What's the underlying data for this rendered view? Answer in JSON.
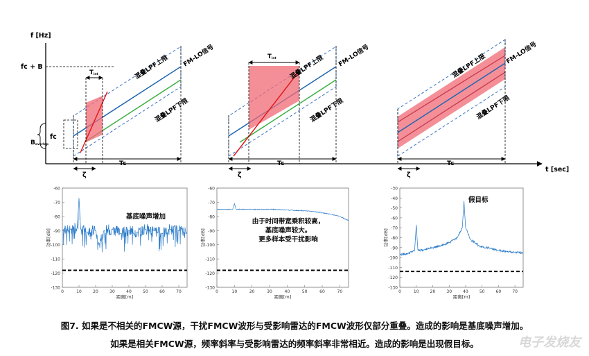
{
  "top_diagram": {
    "y_axis_label": "f [Hz]",
    "x_axis_label": "t [sec]",
    "label_fc_plus_b": "fc + B",
    "label_fc": "fc",
    "label_b_overlap": "B",
    "label_b_overlap_sub": "overlap",
    "label_tint": "T",
    "label_tint_sub": "int",
    "label_tc": "Tc",
    "label_zeta": "ζ",
    "label_upper_limit": "混叠LPF上限",
    "label_lower_limit": "混叠LPF下限",
    "label_fm_lo": "FM-LO信号",
    "colors": {
      "lo": "#2166b0",
      "green": "#3cb043",
      "dashed": "#3a72c4",
      "interferer": "#e01b1b",
      "band": "#f06a75"
    }
  },
  "bottom_plots": {
    "y_axis_title": "功率[dB]",
    "x_axis_title": "距离[m]",
    "x_ticks": [
      "0",
      "10",
      "20",
      "30",
      "40",
      "50",
      "60",
      "70"
    ],
    "plots": [
      {
        "annotation": [
          "基底噪声增加"
        ],
        "y_ticks": [
          "-60",
          "-70",
          "-80",
          "-90",
          "-100",
          "-110",
          "-120",
          "-130"
        ],
        "chart_data": {
          "type": "line",
          "xlabel": "距离[m]",
          "ylabel": "功率[dB]",
          "xlim": [
            0,
            75
          ],
          "ylim": [
            -130,
            -60
          ],
          "series": [
            {
              "name": "spectrum",
              "x": [
                0,
                5,
                9,
                10,
                11,
                15,
                20,
                22,
                25,
                30,
                35,
                40,
                45,
                50,
                55,
                60,
                65,
                70,
                75
              ],
              "y": [
                -90,
                -89,
                -88,
                -67,
                -89,
                -91,
                -90,
                -100,
                -90,
                -89,
                -92,
                -90,
                -91,
                -89,
                -90,
                -92,
                -89,
                -90,
                -92
              ]
            },
            {
              "name": "threshold",
              "x": [
                0,
                75
              ],
              "y": [
                -118,
                -118
              ]
            }
          ]
        }
      },
      {
        "annotation": [
          "由于时间带宽乘积较高，",
          "基底噪声较大。",
          "更多样本受干扰影响"
        ],
        "y_ticks": [
          "-60",
          "-70",
          "-80",
          "-90",
          "-100",
          "-110",
          "-120",
          "-130"
        ],
        "chart_data": {
          "type": "line",
          "xlabel": "距离[m]",
          "ylabel": "功率[dB]",
          "xlim": [
            0,
            75
          ],
          "ylim": [
            -130,
            -60
          ],
          "series": [
            {
              "name": "spectrum",
              "x": [
                0,
                5,
                9,
                10,
                11,
                20,
                30,
                40,
                50,
                55,
                60,
                65,
                70,
                75
              ],
              "y": [
                -75,
                -75,
                -75,
                -71,
                -75,
                -75,
                -75,
                -75.5,
                -76,
                -76.5,
                -77.5,
                -78.5,
                -80,
                -83
              ]
            },
            {
              "name": "threshold",
              "x": [
                0,
                75
              ],
              "y": [
                -118,
                -118
              ]
            }
          ]
        }
      },
      {
        "annotation": [
          "假目标"
        ],
        "y_ticks": [
          "-30",
          "-40",
          "-50",
          "-60",
          "-70",
          "-80",
          "-90",
          "-100",
          "-110",
          "-120",
          "-130"
        ],
        "chart_data": {
          "type": "line",
          "xlabel": "距离[m]",
          "ylabel": "功率[dB]",
          "xlim": [
            0,
            75
          ],
          "ylim": [
            -130,
            -30
          ],
          "series": [
            {
              "name": "spectrum",
              "x": [
                0,
                5,
                9,
                10,
                11,
                15,
                20,
                25,
                30,
                35,
                38,
                39,
                40,
                43,
                48,
                55,
                60,
                65,
                70,
                75
              ],
              "y": [
                -97,
                -96,
                -93,
                -67,
                -93,
                -92,
                -90,
                -88,
                -85,
                -80,
                -70,
                -43,
                -70,
                -82,
                -88,
                -91,
                -93,
                -94,
                -95,
                -95
              ]
            },
            {
              "name": "threshold",
              "x": [
                0,
                75
              ],
              "y": [
                -114,
                -114
              ]
            }
          ]
        }
      }
    ]
  },
  "caption_line1": "图7. 如果是不相关的FMCW源，干扰FMCW波形与受影响雷达的FMCW波形仅部分重叠。造成的影响是基底噪声增加。",
  "caption_line2": "如果是相关FMCW源，频率斜率与受影响雷达的频率斜率非常相近。造成的影响是出现假目标。",
  "watermark": "电子发烧友"
}
